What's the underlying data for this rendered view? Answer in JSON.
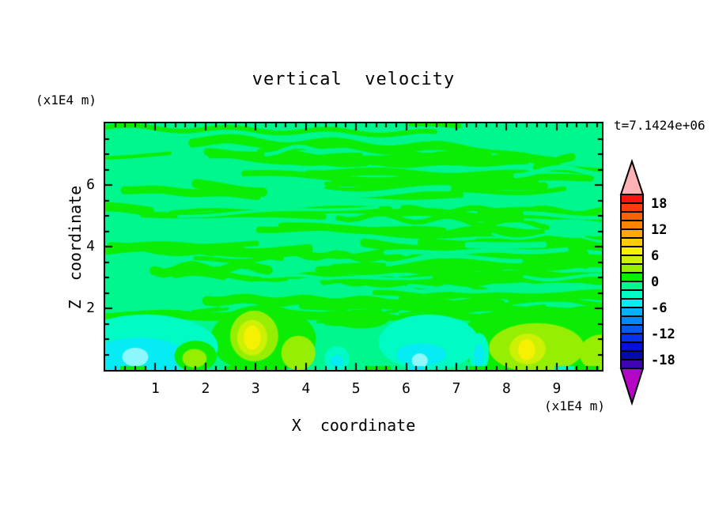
{
  "chart_data": {
    "type": "heatmap",
    "title": "vertical  velocity",
    "time_label": "t=7.1424e+06",
    "xlabel": "X  coordinate",
    "ylabel": "Z  coordinate",
    "x_unit_label": "(x1E4 m)",
    "z_unit_label": "(x1E4 m)",
    "x_range": [
      0,
      9.9
    ],
    "z_range": [
      0,
      8
    ],
    "x_major_ticks": [
      1,
      2,
      3,
      4,
      5,
      6,
      7,
      8,
      9
    ],
    "x_minor_step": 0.2,
    "z_major_ticks": [
      2,
      4,
      6
    ],
    "z_minor_step": 0.5,
    "grid": false,
    "legend_position": "right-colorbar",
    "colorbar": {
      "min": -20,
      "max": 20,
      "cell_size": 2,
      "label_values": [
        18,
        12,
        6,
        0,
        -6,
        -12,
        -18
      ],
      "cell_colors_top_to_bottom": [
        "#fa1410",
        "#fb3e06",
        "#fc6203",
        "#fd8502",
        "#fea903",
        "#fecb05",
        "#f6f002",
        "#ccf104",
        "#96ef03",
        "#0bee04",
        "#00f78e",
        "#01fbc4",
        "#06ecf4",
        "#03b3fa",
        "#0487f7",
        "#055af3",
        "#0632ee",
        "#0412d9",
        "#0509b0",
        "#3f05b2"
      ],
      "over_arrow_color": "#ffb2b6",
      "under_arrow_color": "#b505c5",
      "border_color": "#000000"
    },
    "field": {
      "description": "Wavy horizontal bands of w between -2 and +2 fill most of the domain; stronger up/downdraft cells (-6 to +8) hug the lower boundary.",
      "background_value": -1,
      "streaks": {
        "seed": 7,
        "count": 58,
        "extra_mid": 16,
        "counter_count": 18,
        "value": 1,
        "thickness": [
          4,
          12
        ],
        "z_band": [
          1.6,
          7.95
        ]
      },
      "dashes": {
        "count": 46,
        "value": 1,
        "z_band": [
          1.45,
          1.95
        ]
      },
      "blobs": [
        {
          "v": 1,
          "cx": 3.15,
          "cz": 1.0,
          "rx": 1.05,
          "rz": 1.1
        },
        {
          "v": 1,
          "cx": 8.75,
          "cz": 0.9,
          "rx": 1.8,
          "rz": 1.15
        },
        {
          "v": 1,
          "cx": 5.1,
          "cz": 1.65,
          "rx": 0.55,
          "rz": 0.3
        },
        {
          "v": -3,
          "cx": 0.8,
          "cz": 0.75,
          "rx": 1.45,
          "rz": 1.05
        },
        {
          "v": -5,
          "cx": 0.68,
          "cz": 0.45,
          "rx": 0.92,
          "rz": 0.6
        },
        {
          "v": -5,
          "cx": 0.6,
          "cz": 0.42,
          "rx": 0.26,
          "rz": 0.3,
          "color": "#8df7fc"
        },
        {
          "v": 1,
          "cx": 1.8,
          "cz": 0.45,
          "rx": 0.42,
          "rz": 0.5
        },
        {
          "v": 3,
          "cx": 1.78,
          "cz": 0.38,
          "rx": 0.24,
          "rz": 0.3
        },
        {
          "v": -3,
          "cx": 6.45,
          "cz": 0.9,
          "rx": 1.0,
          "rz": 0.9
        },
        {
          "v": -5,
          "cx": 6.3,
          "cz": 0.5,
          "rx": 0.5,
          "rz": 0.36
        },
        {
          "v": -5,
          "cx": 6.27,
          "cz": 0.3,
          "rx": 0.16,
          "rz": 0.24,
          "color": "#8df7fc"
        },
        {
          "v": -3,
          "cx": 4.62,
          "cz": 0.35,
          "rx": 0.25,
          "rz": 0.42
        },
        {
          "v": -5,
          "cx": 4.62,
          "cz": 0.26,
          "rx": 0.13,
          "rz": 0.22
        },
        {
          "v": -3,
          "cx": 7.45,
          "cz": 0.55,
          "rx": 0.2,
          "rz": 0.65
        },
        {
          "v": -5,
          "cx": 7.45,
          "cz": 0.45,
          "rx": 0.1,
          "rz": 0.4
        },
        {
          "v": 3,
          "cx": 2.97,
          "cz": 1.1,
          "rx": 0.48,
          "rz": 0.82
        },
        {
          "v": 5,
          "cx": 2.93,
          "cz": 1.05,
          "rx": 0.3,
          "rz": 0.58
        },
        {
          "v": 7,
          "cx": 2.93,
          "cz": 1.05,
          "rx": 0.17,
          "rz": 0.4
        },
        {
          "v": 3,
          "cx": 3.85,
          "cz": 0.55,
          "rx": 0.34,
          "rz": 0.56
        },
        {
          "v": 3,
          "cx": 8.6,
          "cz": 0.72,
          "rx": 0.95,
          "rz": 0.8
        },
        {
          "v": 5,
          "cx": 8.42,
          "cz": 0.68,
          "rx": 0.36,
          "rz": 0.5
        },
        {
          "v": 7,
          "cx": 8.4,
          "cz": 0.66,
          "rx": 0.17,
          "rz": 0.34
        },
        {
          "v": 3,
          "cx": 9.9,
          "cz": 0.55,
          "rx": 0.45,
          "rz": 0.6
        }
      ],
      "bottom_strip": [
        {
          "x": 0.3,
          "w": 0.5,
          "v": 1
        },
        {
          "x": 1.1,
          "w": 0.35,
          "v": -5
        },
        {
          "x": 2.4,
          "w": 0.5,
          "v": 1
        },
        {
          "x": 4.35,
          "w": 0.4,
          "v": -3
        },
        {
          "x": 5.2,
          "w": 0.5,
          "v": 1
        },
        {
          "x": 6.05,
          "w": 0.3,
          "v": -5
        },
        {
          "x": 7.25,
          "w": 0.5,
          "v": 1
        },
        {
          "x": 8.95,
          "w": 0.4,
          "v": -3
        },
        {
          "x": 9.6,
          "w": 0.25,
          "v": 1
        }
      ]
    }
  }
}
